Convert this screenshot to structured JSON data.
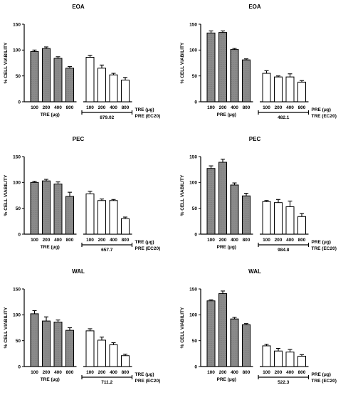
{
  "colors": {
    "dark_bar": "#8a8a8a",
    "light_bar": "#ffffff",
    "axis": "#000000"
  },
  "chart_data": [
    {
      "type": "bar",
      "title": "EOA",
      "ylabel": "% CELL VIABILITY",
      "ylim": [
        0,
        150
      ],
      "yticks": [
        0,
        50,
        100,
        150
      ],
      "dark_categories": [
        "100",
        "200",
        "400",
        "800"
      ],
      "dark_values": [
        97,
        103,
        84,
        65
      ],
      "dark_errors": [
        3,
        3,
        3,
        3
      ],
      "dark_group_label": "TRE",
      "dark_group_unit": "(μg)",
      "light_categories": [
        "100",
        "200",
        "400",
        "800"
      ],
      "light_values": [
        86,
        65,
        52,
        42
      ],
      "light_errors": [
        4,
        6,
        3,
        5
      ],
      "bracket_value": "879.02",
      "bracket_label_top": "TRE (μg)",
      "bracket_label_bottom": "PRE (EC20)"
    },
    {
      "type": "bar",
      "title": "EOA",
      "ylabel": "% CELL VIABILITY",
      "ylim": [
        0,
        150
      ],
      "yticks": [
        0,
        50,
        100,
        150
      ],
      "dark_categories": [
        "100",
        "200",
        "400",
        "800"
      ],
      "dark_values": [
        133,
        134,
        101,
        81
      ],
      "dark_errors": [
        4,
        3,
        2,
        2
      ],
      "dark_group_label": "PRE",
      "dark_group_unit": "(μg)",
      "light_categories": [
        "100",
        "200",
        "400",
        "800"
      ],
      "light_values": [
        55,
        48,
        48,
        38
      ],
      "light_errors": [
        5,
        2,
        6,
        3
      ],
      "bracket_value": "482.1",
      "bracket_label_top": "PRE (μg)",
      "bracket_label_bottom": "TRE (EC20)"
    },
    {
      "type": "bar",
      "title": "PEC",
      "ylabel": "% CELL VIABILITY",
      "ylim": [
        0,
        150
      ],
      "yticks": [
        0,
        50,
        100,
        150
      ],
      "dark_categories": [
        "100",
        "200",
        "400",
        "800"
      ],
      "dark_values": [
        100,
        103,
        97,
        73
      ],
      "dark_errors": [
        2,
        3,
        4,
        8
      ],
      "dark_group_label": "TRE",
      "dark_group_unit": "(μg)",
      "light_categories": [
        "100",
        "200",
        "400",
        "800"
      ],
      "light_values": [
        78,
        65,
        65,
        30
      ],
      "light_errors": [
        5,
        3,
        2,
        3
      ],
      "bracket_value": "657.7",
      "bracket_label_top": "TRE (μg)",
      "bracket_label_bottom": "PRE (EC20)"
    },
    {
      "type": "bar",
      "title": "PEC",
      "ylabel": "% CELL VIABILITY",
      "ylim": [
        0,
        150
      ],
      "yticks": [
        0,
        50,
        100,
        150
      ],
      "dark_categories": [
        "100",
        "200",
        "400",
        "800"
      ],
      "dark_values": [
        127,
        139,
        95,
        74
      ],
      "dark_errors": [
        5,
        6,
        4,
        5
      ],
      "dark_group_label": "PRE",
      "dark_group_unit": "(μg)",
      "light_categories": [
        "100",
        "200",
        "400",
        "800"
      ],
      "light_values": [
        63,
        61,
        53,
        34
      ],
      "light_errors": [
        2,
        6,
        11,
        6
      ],
      "bracket_value": "984.8",
      "bracket_label_top": "PRE (μg)",
      "bracket_label_bottom": "TRE (EC20)"
    },
    {
      "type": "bar",
      "title": "WAL",
      "ylabel": "% CELL VIABILITY",
      "ylim": [
        0,
        150
      ],
      "yticks": [
        0,
        50,
        100,
        150
      ],
      "dark_categories": [
        "100",
        "200",
        "400",
        "800"
      ],
      "dark_values": [
        102,
        88,
        86,
        70
      ],
      "dark_errors": [
        6,
        8,
        4,
        5
      ],
      "dark_group_label": "TRE",
      "dark_group_unit": "(μg)",
      "light_categories": [
        "100",
        "200",
        "400",
        "800"
      ],
      "light_values": [
        69,
        51,
        42,
        21
      ],
      "light_errors": [
        4,
        6,
        4,
        3
      ],
      "bracket_value": "711.2",
      "bracket_label_top": "TRE (μg)",
      "bracket_label_bottom": "PRE (EC20)"
    },
    {
      "type": "bar",
      "title": "WAL",
      "ylabel": "% CELL VIABILITY",
      "ylim": [
        0,
        150
      ],
      "yticks": [
        0,
        50,
        100,
        150
      ],
      "dark_categories": [
        "100",
        "200",
        "400",
        "800"
      ],
      "dark_values": [
        127,
        141,
        92,
        81
      ],
      "dark_errors": [
        2,
        5,
        3,
        2
      ],
      "dark_group_label": "PRE",
      "dark_group_unit": "(μg)",
      "light_categories": [
        "100",
        "200",
        "400",
        "800"
      ],
      "light_values": [
        40,
        30,
        28,
        20
      ],
      "light_errors": [
        3,
        5,
        5,
        3
      ],
      "bracket_value": "522.3",
      "bracket_label_top": "PRE (μg)",
      "bracket_label_bottom": "TRE (EC20)"
    }
  ]
}
